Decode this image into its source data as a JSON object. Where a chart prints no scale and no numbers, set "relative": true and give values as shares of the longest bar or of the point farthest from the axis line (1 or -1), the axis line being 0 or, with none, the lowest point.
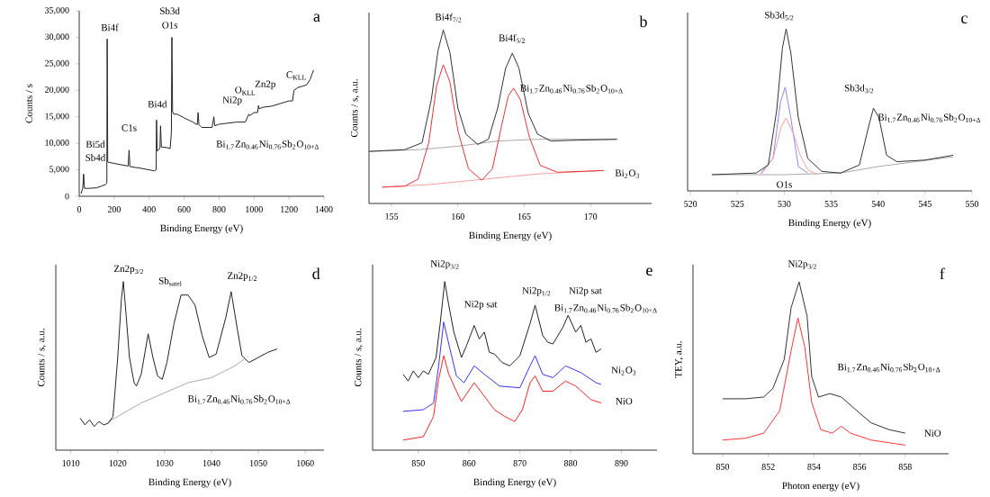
{
  "chart_data": [
    {
      "type": "line",
      "xlabel": "Binding Energy (eV)",
      "ylabel": "Counts / s",
      "xlim": [
        0,
        1400
      ],
      "xticks": [
        0,
        200,
        400,
        600,
        800,
        1000,
        1200,
        1400
      ],
      "ylim": [
        0,
        35000
      ],
      "yticks": [
        0,
        {
          "value": 5000,
          "label": "5,000"
        },
        {
          "value": 10000,
          "label": "10,000"
        },
        {
          "value": 15000,
          "label": "15,000"
        },
        {
          "value": 20000,
          "label": "20,000"
        },
        {
          "value": 25000,
          "label": "25,000"
        },
        {
          "value": 30000,
          "label": "30,000"
        },
        {
          "value": 35000,
          "label": "35,000"
        }
      ],
      "series": [
        {
          "name": "Bi$_{1.7}$Zn$_{0.46}$Ni$_{0.76}$Sb$_{2}$O$_{10+Δ}$",
          "color": "#222222",
          "x": [
            10,
            20,
            25,
            30,
            60,
            100,
            150,
            158,
            160,
            163,
            170,
            200,
            280,
            285,
            290,
            350,
            430,
            440,
            442,
            446,
            455,
            462,
            465,
            470,
            500,
            520,
            527,
            530,
            534,
            540,
            560,
            600,
            650,
            675,
            680,
            685,
            700,
            760,
            770,
            775,
            800,
            900,
            950,
            970,
            975,
            1000,
            1020,
            1025,
            1030,
            1050,
            1100,
            1150,
            1200,
            1220,
            1228,
            1250,
            1300,
            1320,
            1340
          ],
          "values": [
            500,
            1500,
            4200,
            1500,
            1500,
            1600,
            2200,
            2500,
            29700,
            6500,
            6400,
            6200,
            5700,
            8700,
            5600,
            5300,
            4800,
            5000,
            14400,
            8500,
            8800,
            9200,
            13300,
            9300,
            9200,
            9000,
            12000,
            30000,
            16000,
            15500,
            15500,
            14800,
            14000,
            13500,
            15800,
            13500,
            13000,
            13000,
            15000,
            13300,
            13600,
            14000,
            14000,
            15500,
            15200,
            15800,
            15800,
            17100,
            16500,
            16800,
            17000,
            17500,
            18000,
            18000,
            20000,
            20500,
            21000,
            22000,
            23800
          ]
        }
      ],
      "annotations": [
        "a",
        "Bi5d",
        "Sb4d",
        "Bi4f",
        "C1s",
        "Bi4d",
        "Sb3d",
        "O1s",
        "Ni2p",
        "O$_{KLL}$",
        "Zn2p",
        "C$_{KLL}$"
      ]
    },
    {
      "type": "line",
      "relative": true,
      "xlabel": "Binding Energy (eV)",
      "ylabel": "Counts / s, a.u.",
      "xlim": [
        153.3,
        174.6
      ],
      "xticks": [
        155,
        160,
        165,
        170
      ],
      "series": [
        {
          "color": "#aaaaaa",
          "x": [
            153.3,
            157,
            160,
            163,
            166,
            172
          ],
          "values": [
            0.3,
            0.31,
            0.33,
            0.36,
            0.37,
            0.37
          ]
        },
        {
          "name": "Bi$_{1.7}$Zn$_{0.46}$Ni$_{0.76}$Sb$_{2}$O$_{10+Δ}$",
          "color": "#333333",
          "x": [
            153.3,
            156,
            157.3,
            158.0,
            158.5,
            158.9,
            159.4,
            160.0,
            160.6,
            161.5,
            162.3,
            163.0,
            163.6,
            164.1,
            164.6,
            165.3,
            166.0,
            167,
            169,
            172
          ],
          "values": [
            0.3,
            0.31,
            0.35,
            0.6,
            0.88,
            1.0,
            0.87,
            0.55,
            0.4,
            0.34,
            0.37,
            0.55,
            0.78,
            0.866,
            0.78,
            0.52,
            0.4,
            0.36,
            0.365,
            0.37
          ]
        },
        {
          "color": "#f4a0a0",
          "x": [
            154.3,
            158,
            162,
            166,
            171
          ],
          "values": [
            0.094,
            0.11,
            0.14,
            0.17,
            0.19
          ]
        },
        {
          "name": "Bi$_{2}$O$_{3}$",
          "color": "#ee3333",
          "x": [
            154.3,
            156,
            157,
            157.8,
            158.4,
            158.9,
            159.4,
            160,
            160.8,
            161.8,
            162.6,
            163.3,
            163.8,
            164.2,
            164.7,
            165.4,
            166.2,
            167.5,
            171
          ],
          "values": [
            0.094,
            0.1,
            0.14,
            0.35,
            0.68,
            0.8,
            0.7,
            0.42,
            0.2,
            0.134,
            0.2,
            0.45,
            0.62,
            0.664,
            0.6,
            0.38,
            0.22,
            0.18,
            0.19
          ]
        }
      ],
      "annotations": [
        "b",
        "Bi4f$_{7/2}$",
        "Bi4f$_{5/2}$"
      ]
    },
    {
      "type": "line",
      "relative": true,
      "xlabel": "Binding Energy (eV)",
      "xlim": [
        519.7,
        550
      ],
      "xticks": [
        520,
        525,
        530,
        535,
        540,
        545,
        550
      ],
      "series": [
        {
          "color": "#aaaaaa",
          "x": [
            522.3,
            530,
            536,
            540,
            544,
            548
          ],
          "values": [
            0.1,
            0.1,
            0.11,
            0.15,
            0.18,
            0.21
          ]
        },
        {
          "color": "#8888ff",
          "x": [
            527.5,
            528.8,
            529.6,
            530.1,
            530.7,
            531.5,
            532.5
          ],
          "values": [
            0.11,
            0.2,
            0.55,
            0.64,
            0.45,
            0.15,
            0.11
          ]
        },
        {
          "color": "#ff9999",
          "x": [
            527.5,
            528.8,
            529.7,
            530.2,
            531,
            531.7,
            532.5,
            533.5
          ],
          "values": [
            0.1,
            0.2,
            0.4,
            0.45,
            0.35,
            0.22,
            0.13,
            0.1
          ]
        },
        {
          "name": "Bi$_{1.7}$Zn$_{0.46}$Ni$_{0.76}$Sb$_{2}$O$_{10+Δ}$",
          "color": "#333333",
          "x": [
            522.3,
            527,
            528.3,
            529.2,
            529.8,
            530.2,
            530.7,
            531.5,
            532.5,
            534,
            536,
            538,
            539,
            539.5,
            540.1,
            540.9,
            542,
            545,
            548
          ],
          "values": [
            0.1,
            0.11,
            0.16,
            0.5,
            0.88,
            1.0,
            0.85,
            0.45,
            0.2,
            0.12,
            0.11,
            0.16,
            0.4,
            0.51,
            0.45,
            0.22,
            0.18,
            0.19,
            0.22
          ]
        }
      ],
      "annotations": [
        "c",
        "Sb3d$_{5/2}$",
        "Sb3d$_{3/2}$",
        "O1s"
      ]
    },
    {
      "type": "line",
      "relative": true,
      "xlabel": "Binding Energy (eV)",
      "ylabel": "Counts / s, a.u.",
      "xlim": [
        1006.8,
        1064
      ],
      "xticks": [
        1010,
        1020,
        1030,
        1040,
        1050,
        1060
      ],
      "series": [
        {
          "color": "#aaaaaa",
          "x": [
            1018,
            1020,
            1025,
            1030,
            1035,
            1040,
            1045,
            1047
          ],
          "values": [
            0.17,
            0.2,
            0.28,
            0.34,
            0.4,
            0.43,
            0.5,
            0.54
          ]
        },
        {
          "name": "Bi$_{1.7}$Zn$_{0.46}$Ni$_{0.76}$Sb$_{2}$O$_{10+Δ}$",
          "color": "#222222",
          "x": [
            1012,
            1013,
            1014,
            1015,
            1016,
            1017,
            1018,
            1019,
            1020,
            1020.8,
            1021.2,
            1021.8,
            1022.5,
            1023.5,
            1024,
            1025,
            1026.5,
            1027.5,
            1028.5,
            1029.5,
            1030.5,
            1032,
            1033.5,
            1035,
            1036.5,
            1038,
            1039.5,
            1041,
            1043,
            1044.2,
            1045.5,
            1046.5,
            1048,
            1050,
            1052,
            1054
          ],
          "values": [
            0.19,
            0.15,
            0.18,
            0.14,
            0.17,
            0.15,
            0.16,
            0.2,
            0.55,
            0.9,
            1.0,
            0.8,
            0.55,
            0.4,
            0.38,
            0.45,
            0.69,
            0.55,
            0.44,
            0.42,
            0.52,
            0.75,
            0.92,
            0.92,
            0.86,
            0.68,
            0.55,
            0.57,
            0.78,
            0.94,
            0.72,
            0.56,
            0.52,
            0.55,
            0.58,
            0.6
          ]
        }
      ],
      "annotations": [
        "d",
        "Zn2p$_{3/2}$",
        "Sb$_{satel}$",
        "Zn2p$_{1/2}$"
      ]
    },
    {
      "type": "line",
      "relative": true,
      "xlabel": "Binding Energy (eV)",
      "ylabel": "Counts / s, a.u.",
      "xlim": [
        841,
        897
      ],
      "xticks": [
        850,
        860,
        870,
        880,
        890
      ],
      "series": [
        {
          "name": "NiO",
          "color": "#ff2222",
          "x": [
            847,
            851,
            853,
            854,
            855,
            856,
            857.5,
            858.5,
            861,
            863,
            865,
            867,
            869,
            870.5,
            872,
            873,
            874.5,
            876.5,
            879,
            881,
            884,
            886
          ],
          "values": [
            0.06,
            0.08,
            0.2,
            0.42,
            0.56,
            0.45,
            0.35,
            0.29,
            0.4,
            0.32,
            0.24,
            0.2,
            0.17,
            0.24,
            0.4,
            0.44,
            0.35,
            0.35,
            0.41,
            0.38,
            0.3,
            0.28
          ]
        },
        {
          "name": "Ni$_{2}$O$_{3}$",
          "color": "#3333ff",
          "x": [
            847,
            851,
            853,
            854,
            855,
            856,
            857.5,
            859,
            861,
            863,
            866,
            870,
            872,
            873,
            874.5,
            876.5,
            879,
            882,
            885,
            886
          ],
          "values": [
            0.23,
            0.24,
            0.28,
            0.5,
            0.76,
            0.63,
            0.44,
            0.4,
            0.5,
            0.45,
            0.38,
            0.37,
            0.5,
            0.56,
            0.45,
            0.43,
            0.5,
            0.46,
            0.4,
            0.39
          ]
        },
        {
          "name": "Bi$_{1.7}$Zn$_{0.46}$Ni$_{0.76}$Sb$_{2}$O$_{10+Δ}$",
          "color": "#222222",
          "x": [
            847,
            848,
            849,
            850,
            851,
            852,
            853.5,
            854.3,
            855.2,
            856,
            857,
            858.5,
            859.5,
            861,
            862,
            863,
            864,
            865,
            866.5,
            868,
            870,
            872,
            873,
            874.5,
            875.5,
            876.5,
            878.5,
            879.5,
            881,
            882,
            883,
            884,
            885,
            886
          ],
          "values": [
            0.45,
            0.41,
            0.47,
            0.43,
            0.47,
            0.45,
            0.55,
            0.75,
            1.0,
            0.86,
            0.7,
            0.55,
            0.62,
            0.74,
            0.66,
            0.7,
            0.58,
            0.57,
            0.52,
            0.5,
            0.56,
            0.75,
            0.86,
            0.68,
            0.64,
            0.63,
            0.73,
            0.8,
            0.7,
            0.74,
            0.64,
            0.66,
            0.58,
            0.6
          ]
        }
      ],
      "annotations": [
        "e",
        "Ni2p$_{3/2}$",
        "Ni2p sat",
        "Ni2p$_{1/2}$",
        "Ni2p sat"
      ]
    },
    {
      "type": "line",
      "relative": true,
      "xlabel": "Photon energy (eV)",
      "ylabel": "TEY, a.u.",
      "xlim": [
        848.7,
        859.9
      ],
      "xticks": [
        850,
        852,
        854,
        856,
        858
      ],
      "series": [
        {
          "name": "NiO",
          "color": "#ff3333",
          "x": [
            850,
            851,
            851.8,
            852.5,
            853.0,
            853.3,
            853.6,
            853.9,
            854.3,
            854.8,
            855.2,
            855.6,
            856.5,
            857.5,
            858
          ],
          "values": [
            0.08,
            0.09,
            0.12,
            0.25,
            0.6,
            0.79,
            0.62,
            0.3,
            0.14,
            0.12,
            0.16,
            0.12,
            0.08,
            0.06,
            0.05
          ]
        },
        {
          "name": "Bi$_{1.7}$Zn$_{0.46}$Ni$_{0.76}$Sb$_{2}$O$_{10+Δ}$",
          "color": "#333333",
          "x": [
            850,
            851,
            851.8,
            852.2,
            852.7,
            853.0,
            853.35,
            853.7,
            853.9,
            854.2,
            854.7,
            855.2,
            855.8,
            856.5,
            857.3,
            858
          ],
          "values": [
            0.32,
            0.32,
            0.33,
            0.38,
            0.55,
            0.85,
            1.0,
            0.8,
            0.45,
            0.33,
            0.35,
            0.33,
            0.26,
            0.18,
            0.14,
            0.12
          ]
        }
      ],
      "annotations": [
        "f",
        "Ni2p$_{3/2}$"
      ]
    }
  ]
}
